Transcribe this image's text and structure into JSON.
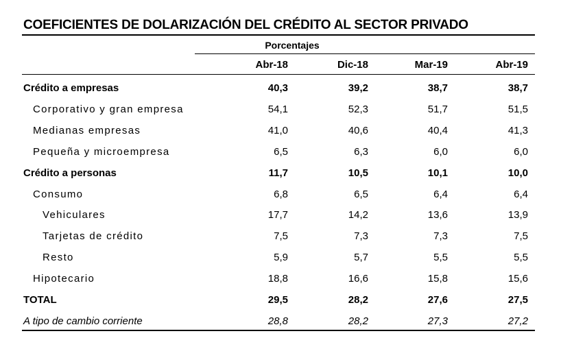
{
  "title": "COEFICIENTES DE DOLARIZACIÓN DEL CRÉDITO AL SECTOR PRIVADO",
  "units": "Porcentajes",
  "columns": [
    "Abr-18",
    "Dic-18",
    "Mar-19",
    "Abr-19"
  ],
  "rows": [
    {
      "label": "Crédito a empresas",
      "values": [
        "40,3",
        "39,2",
        "38,7",
        "38,7"
      ],
      "style": "bold",
      "indent": 0
    },
    {
      "label": "Corporativo y gran empresa",
      "values": [
        "54,1",
        "52,3",
        "51,7",
        "51,5"
      ],
      "style": "normal",
      "indent": 1
    },
    {
      "label": "Medianas empresas",
      "values": [
        "41,0",
        "40,6",
        "40,4",
        "41,3"
      ],
      "style": "normal",
      "indent": 1
    },
    {
      "label": "Pequeña y microempresa",
      "values": [
        "6,5",
        "6,3",
        "6,0",
        "6,0"
      ],
      "style": "normal",
      "indent": 1
    },
    {
      "label": "Crédito a personas",
      "values": [
        "11,7",
        "10,5",
        "10,1",
        "10,0"
      ],
      "style": "bold",
      "indent": 0
    },
    {
      "label": "Consumo",
      "values": [
        "6,8",
        "6,5",
        "6,4",
        "6,4"
      ],
      "style": "normal",
      "indent": 1
    },
    {
      "label": "Vehiculares",
      "values": [
        "17,7",
        "14,2",
        "13,6",
        "13,9"
      ],
      "style": "normal",
      "indent": 2
    },
    {
      "label": "Tarjetas de crédito",
      "values": [
        "7,5",
        "7,3",
        "7,3",
        "7,5"
      ],
      "style": "normal",
      "indent": 2
    },
    {
      "label": "Resto",
      "values": [
        "5,9",
        "5,7",
        "5,5",
        "5,5"
      ],
      "style": "normal",
      "indent": 2
    },
    {
      "label": "Hipotecario",
      "values": [
        "18,8",
        "16,6",
        "15,8",
        "15,6"
      ],
      "style": "normal",
      "indent": 1
    },
    {
      "label": "TOTAL",
      "values": [
        "29,5",
        "28,2",
        "27,6",
        "27,5"
      ],
      "style": "bold",
      "indent": 0
    },
    {
      "label": "A tipo de cambio corriente",
      "values": [
        "28,8",
        "28,2",
        "27,3",
        "27,2"
      ],
      "style": "italic",
      "indent": 0
    }
  ]
}
